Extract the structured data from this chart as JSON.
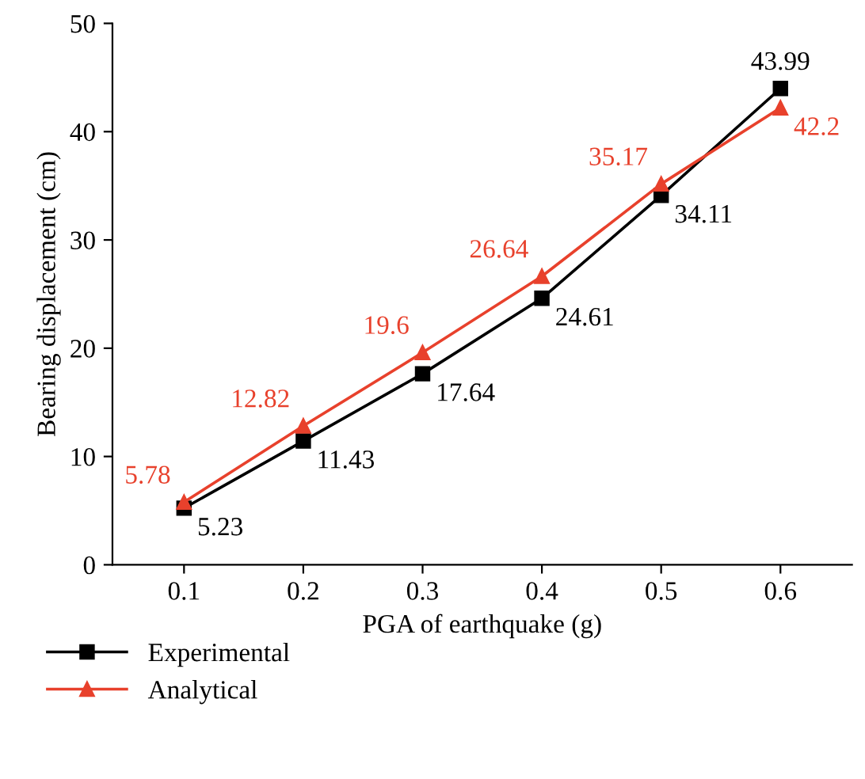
{
  "chart_data": {
    "type": "line",
    "xlabel": "PGA of earthquake (g)",
    "ylabel": "Bearing displacement (cm)",
    "categories": [
      "0.1",
      "0.2",
      "0.3",
      "0.4",
      "0.5",
      "0.6"
    ],
    "series": [
      {
        "name": "Experimental",
        "color": "#000000",
        "marker": "square",
        "values": [
          5.23,
          11.43,
          17.64,
          24.61,
          34.11,
          43.99
        ]
      },
      {
        "name": "Analytical",
        "color": "#e8412c",
        "marker": "triangle",
        "values": [
          5.78,
          12.82,
          19.6,
          26.64,
          35.17,
          42.2
        ]
      }
    ],
    "ylim": [
      0,
      50
    ],
    "yticks": [
      0,
      10,
      20,
      30,
      40,
      50
    ],
    "data_labels": true,
    "grid": false,
    "legend": "bottom",
    "line_style": "solid"
  }
}
